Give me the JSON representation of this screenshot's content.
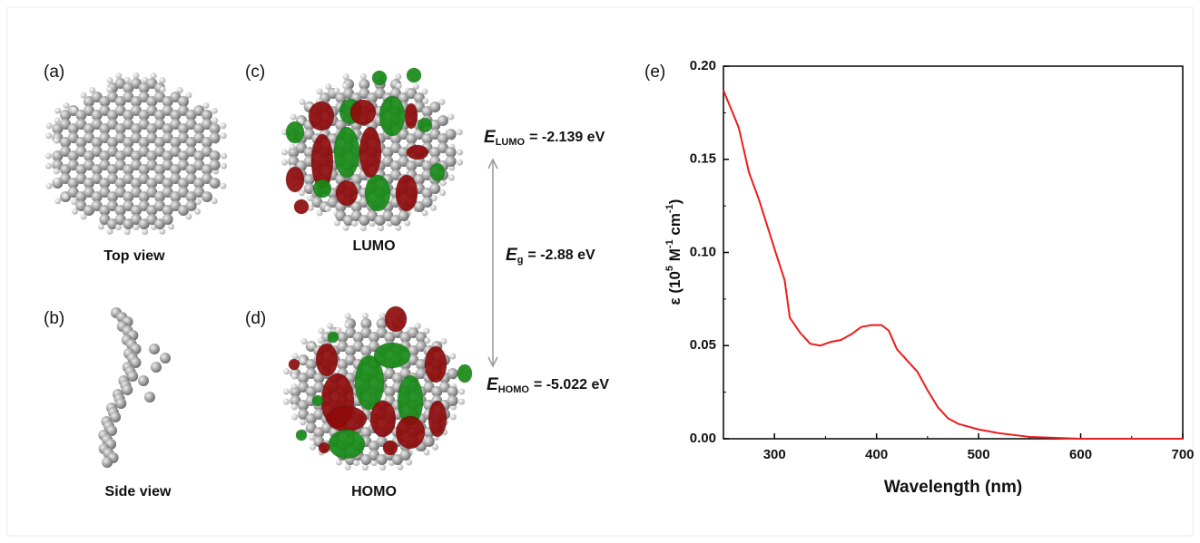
{
  "panel_labels": [
    "(a)",
    "(b)",
    "(c)",
    "(d)",
    "(e)"
  ],
  "captions": [
    "Top view",
    "Side view",
    "LUMO",
    "HOMO"
  ],
  "energies": [
    {
      "symbol": "E",
      "subscript": "LUMO",
      "text": "= -2.139 eV"
    },
    {
      "symbol": "E",
      "subscript": "g",
      "text": "= -2.88 eV"
    },
    {
      "symbol": "E",
      "subscript": "HOMO",
      "text": "= -5.022 eV"
    }
  ],
  "chart_data": {
    "type": "line",
    "x_label": "Wavelength (nm)",
    "y_label": [
      "ε (10",
      "5",
      " M",
      "-1",
      " cm",
      "-1",
      ")"
    ],
    "x": [
      250,
      265,
      275,
      285,
      300,
      310,
      315,
      325,
      335,
      345,
      355,
      365,
      375,
      385,
      395,
      405,
      412,
      420,
      430,
      440,
      450,
      460,
      470,
      480,
      500,
      520,
      550,
      600,
      700
    ],
    "values": [
      0.187,
      0.167,
      0.143,
      0.128,
      0.102,
      0.085,
      0.065,
      0.057,
      0.051,
      0.05,
      0.052,
      0.053,
      0.056,
      0.06,
      0.061,
      0.061,
      0.058,
      0.048,
      0.042,
      0.036,
      0.026,
      0.017,
      0.011,
      0.008,
      0.005,
      0.003,
      0.001,
      0,
      0
    ],
    "color": "#ee1c1c",
    "xlim": [
      250,
      700
    ],
    "xticks": [
      300,
      400,
      500,
      600,
      700
    ],
    "ylim": [
      0,
      0.2
    ],
    "yticks": [
      {
        "value": 0,
        "label": "0.00"
      },
      0.05,
      {
        "value": 0.1,
        "label": "0.10"
      },
      0.15,
      {
        "value": 0.2,
        "label": "0.20"
      }
    ]
  }
}
